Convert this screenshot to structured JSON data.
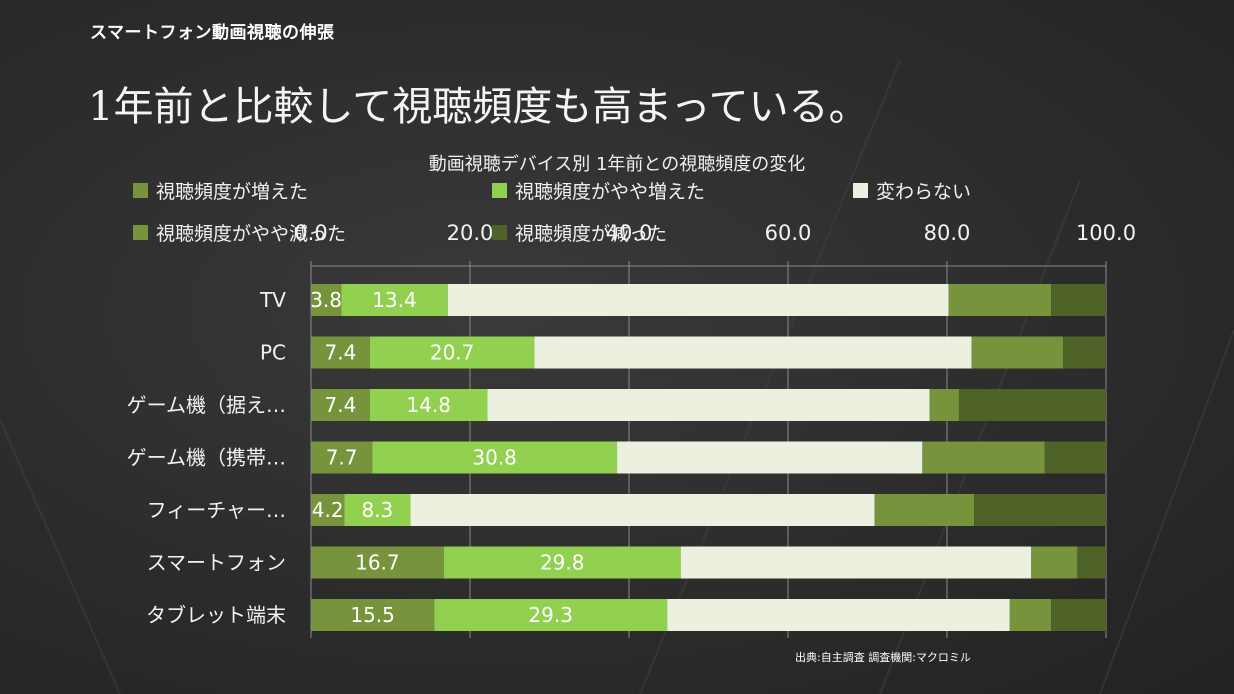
{
  "page": {
    "header": "スマートフォン動画視聴の伸張",
    "headline": "1年前と比較して視聴頻度も高まっている。",
    "source": "出典:自主調査 調査機関:マクロミル"
  },
  "chart_data": {
    "type": "bar",
    "orientation": "horizontal",
    "stacked": true,
    "title": "動画視聴デバイス別 1年前との視聴頻度の変化",
    "categories": [
      "TV",
      "PC",
      "ゲーム機（据え…",
      "ゲーム機（携帯…",
      "フィーチャー…",
      "スマートフォン",
      "タブレット端末"
    ],
    "xlim": [
      0,
      100
    ],
    "xticks": [
      0,
      20,
      40,
      60,
      80,
      100
    ],
    "xtick_labels": [
      "0.0",
      "20.0",
      "40.0",
      "60.0",
      "80.0",
      "100.0"
    ],
    "axis_position": "top",
    "grid": true,
    "legend_position": "top",
    "series": [
      {
        "name": "視聴頻度が増えた",
        "color": "#77933c",
        "values": [
          3.8,
          7.4,
          7.4,
          7.7,
          4.2,
          16.7,
          15.5
        ],
        "labels": [
          "3.8",
          "7.4",
          "7.4",
          "7.7",
          "4.2",
          "16.7",
          "15.5"
        ]
      },
      {
        "name": "視聴頻度がやや増えた",
        "color": "#92d050",
        "values": [
          13.4,
          20.7,
          14.8,
          30.8,
          8.3,
          29.8,
          29.3
        ],
        "labels": [
          "13.4",
          "20.7",
          "14.8",
          "30.8",
          "8.3",
          "29.8",
          "29.3"
        ]
      },
      {
        "name": "変わらない",
        "color": "#ebf1de",
        "values": [
          63.0,
          55.0,
          55.6,
          38.4,
          58.4,
          44.1,
          43.1
        ],
        "labels": []
      },
      {
        "name": "視聴頻度がやや減った",
        "color": "#77933c",
        "values": [
          12.9,
          11.5,
          3.7,
          15.4,
          12.5,
          5.8,
          5.2
        ],
        "labels": []
      },
      {
        "name": "視聴頻度が減った",
        "color": "#4f6228",
        "values": [
          6.9,
          5.4,
          18.5,
          7.7,
          16.6,
          3.6,
          6.9
        ],
        "labels": []
      }
    ]
  }
}
